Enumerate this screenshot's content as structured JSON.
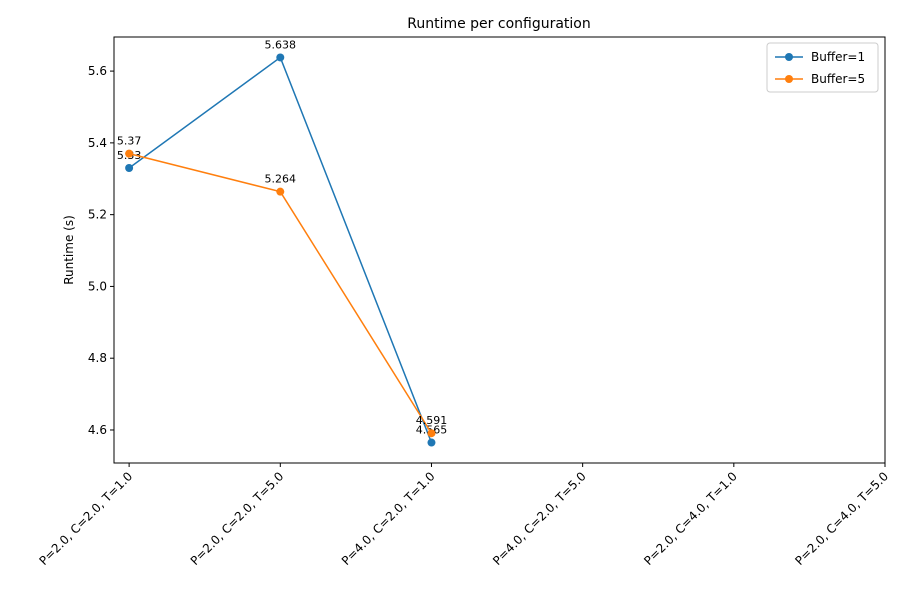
{
  "chart_data": {
    "type": "line",
    "title": "Runtime per configuration",
    "y_label": "Runtime (s)",
    "categories": [
      "P=2.0, C=2.0, T=1.0",
      "P=2.0, C=2.0, T=5.0",
      "P=4.0, C=2.0, T=1.0",
      "P=4.0, C=2.0, T=5.0",
      "P=2.0, C=4.0, T=1.0",
      "P=2.0, C=4.0, T=5.0"
    ],
    "series": [
      {
        "name": "Buffer=1",
        "color": "#1f77b4",
        "values": [
          5.33,
          5.638,
          4.565,
          null,
          null,
          null
        ]
      },
      {
        "name": "Buffer=5",
        "color": "#ff7f0e",
        "values": [
          5.37,
          5.264,
          4.591,
          null,
          null,
          null
        ]
      }
    ],
    "ylim": [
      4.508,
      5.695
    ],
    "yticks": [
      4.6,
      4.8,
      {
        "value": 5,
        "label": "5.0"
      },
      5.2,
      5.4,
      5.6
    ],
    "grid": false,
    "legend": "upper right"
  }
}
